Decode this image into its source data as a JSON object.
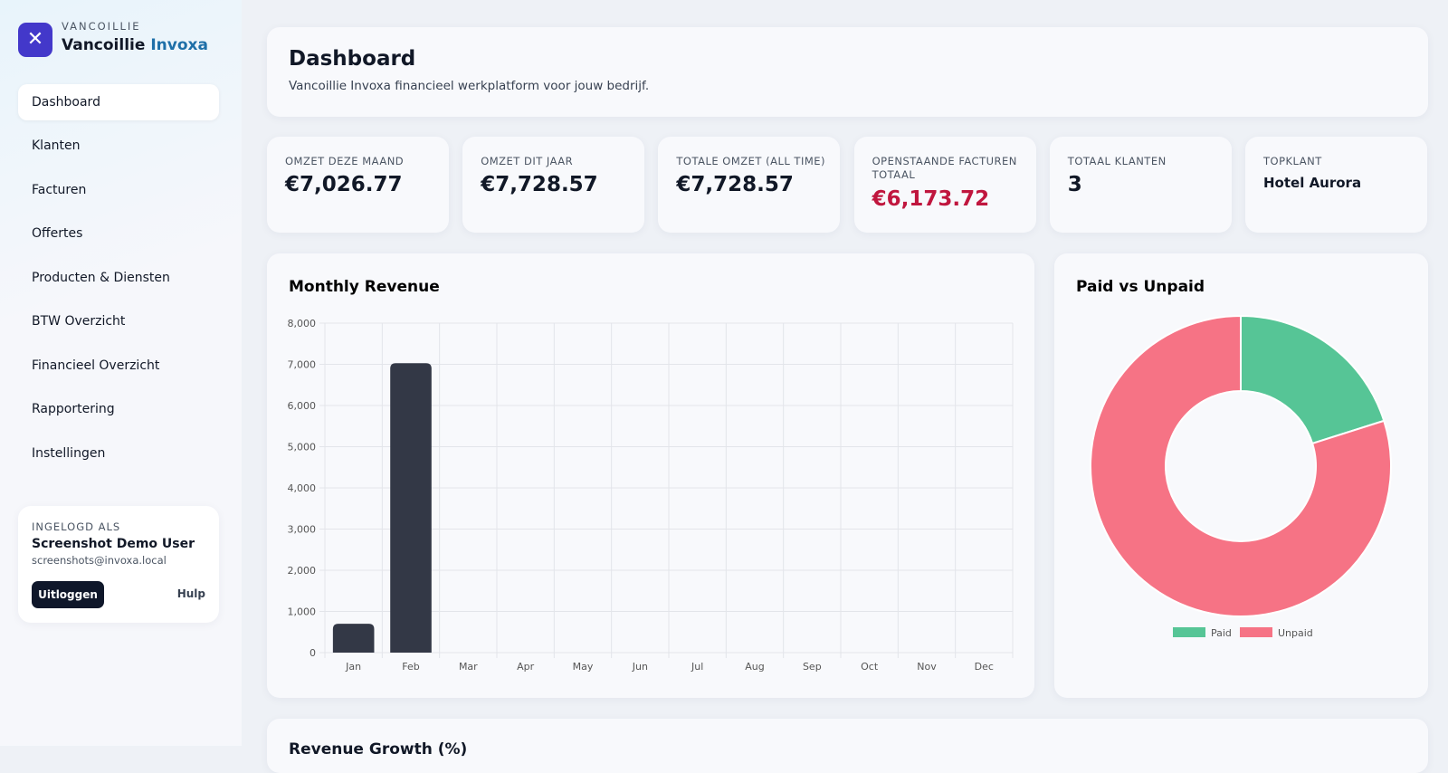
{
  "brand": {
    "small": "VANCOILLIE",
    "name": "Vancoillie",
    "accent": "Invoxa"
  },
  "nav": [
    "Dashboard",
    "Klanten",
    "Facturen",
    "Offertes",
    "Producten & Diensten",
    "BTW Overzicht",
    "Financieel Overzicht",
    "Rapportering",
    "Instellingen"
  ],
  "user": {
    "label": "INGELOGD ALS",
    "name": "Screenshot Demo User",
    "email": "screenshots@invoxa.local",
    "logout": "Uitloggen",
    "help": "Hulp"
  },
  "header": {
    "title": "Dashboard",
    "subtitle": "Vancoillie Invoxa financieel werkplatform voor jouw bedrijf."
  },
  "kpis": [
    {
      "label": "OMZET DEZE MAAND",
      "value": "€7,026.77"
    },
    {
      "label": "OMZET DIT JAAR",
      "value": "€7,728.57"
    },
    {
      "label": "TOTALE OMZET (ALL TIME)",
      "value": "€7,728.57"
    },
    {
      "label": "OPENSTAANDE FACTUREN TOTAAL",
      "value": "€6,173.72"
    },
    {
      "label": "TOTAAL KLANTEN",
      "value": "3"
    },
    {
      "label": "TOPKLANT",
      "value": "Hotel Aurora"
    }
  ],
  "chart_data": [
    {
      "type": "bar",
      "title": "Monthly Revenue",
      "categories": [
        "Jan",
        "Feb",
        "Mar",
        "Apr",
        "May",
        "Jun",
        "Jul",
        "Aug",
        "Sep",
        "Oct",
        "Nov",
        "Dec"
      ],
      "values": [
        701.8,
        7026.77,
        0,
        0,
        0,
        0,
        0,
        0,
        0,
        0,
        0,
        0
      ],
      "color": "#333846",
      "ylim": [
        0,
        8000
      ],
      "yticks": [
        0,
        {
          "value": 1000,
          "label": "1,000"
        },
        {
          "value": 2000,
          "label": "2,000"
        },
        {
          "value": 3000,
          "label": "3,000"
        },
        {
          "value": 4000,
          "label": "4,000"
        },
        {
          "value": 5000,
          "label": "5,000"
        },
        {
          "value": 6000,
          "label": "6,000"
        },
        {
          "value": 7000,
          "label": "7,000"
        },
        {
          "value": 8000,
          "label": "8,000"
        }
      ],
      "grid": true
    },
    {
      "type": "pie",
      "title": "Paid vs Unpaid",
      "categories": [
        "Paid",
        "Unpaid"
      ],
      "values": [
        1554.85,
        6173.72
      ],
      "colors": [
        "#56c596",
        "#f67385"
      ],
      "legend": "bottom"
    }
  ],
  "next_card": {
    "title": "Revenue Growth (%)"
  }
}
